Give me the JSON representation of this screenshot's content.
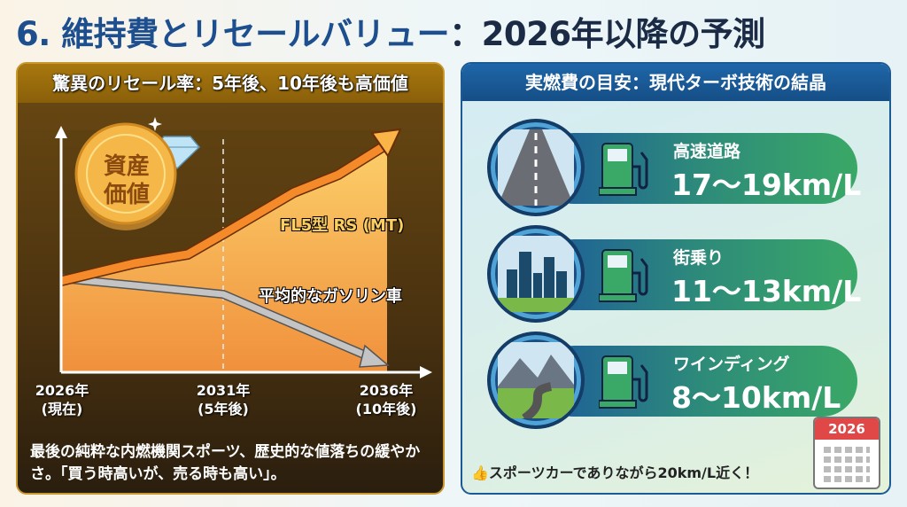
{
  "title": {
    "number": "6. 維持費とリセールバリュー",
    "rest": "：2026年以降の予測"
  },
  "resale": {
    "header": "驚異のリセール率：5年後、10年後も高価値",
    "badge": "資産価値",
    "series": [
      {
        "name": "FL5型 RS (MT)",
        "trend": "rising"
      },
      {
        "name": "平均的なガソリン車",
        "trend": "falling"
      }
    ],
    "years": [
      {
        "year": "2026年",
        "note": "(現在)"
      },
      {
        "year": "2031年",
        "note": "(5年後)"
      },
      {
        "year": "2036年",
        "note": "(10年後)"
      }
    ],
    "body": "最後の純粋な内燃機関スポーツ、歴史的な値落ちの緩やかさ。「買う時高いが、売る時も高い」。",
    "colors": {
      "rising": "#f58a2a",
      "falling": "#b8b8b8"
    }
  },
  "fuel": {
    "header": "実燃費の目安：現代ターボ技術の結晶",
    "rows": [
      {
        "name": "高速道路",
        "value": "17〜19km/L",
        "icon": "highway-icon"
      },
      {
        "name": "街乗り",
        "value": "11〜13km/L",
        "icon": "city-icon"
      },
      {
        "name": "ワインディング",
        "value": "8〜10km/L",
        "icon": "mountain-road-icon"
      }
    ],
    "footer": "スポーツカーでありながら20km/L近く！",
    "calendar_year": "2026"
  }
}
